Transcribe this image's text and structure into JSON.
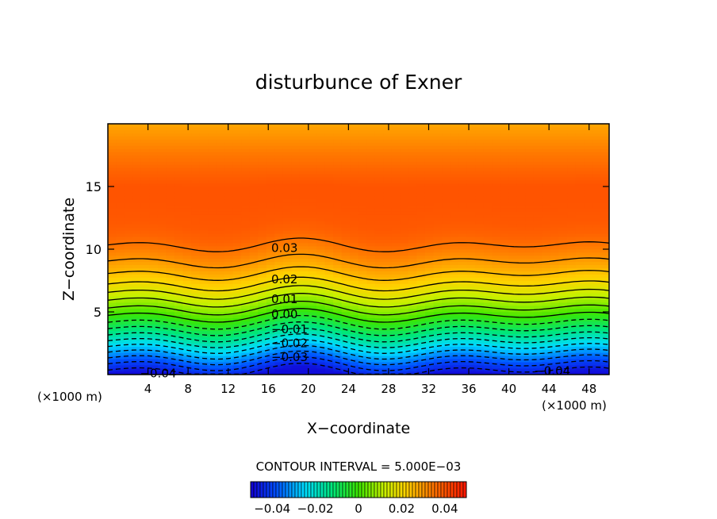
{
  "chart_data": {
    "type": "contour",
    "title": "disturbunce of Exner",
    "xlabel": "X−coordinate",
    "ylabel": "Z−coordinate",
    "x_unit": "(×1000 m)",
    "z_unit": "(×1000 m)",
    "xlim": [
      0,
      50
    ],
    "ylim": [
      0,
      20
    ],
    "x_ticks": [
      4,
      8,
      12,
      16,
      20,
      24,
      28,
      32,
      36,
      40,
      44,
      48
    ],
    "y_ticks": [
      5,
      10,
      15
    ],
    "contour_interval_text": "CONTOUR INTERVAL = 5.000E−03",
    "contour_labels": [
      {
        "text": "0.03",
        "x": 16.3,
        "z": 10.1
      },
      {
        "text": "0.02",
        "x": 16.3,
        "z": 7.6
      },
      {
        "text": "0.01",
        "x": 16.3,
        "z": 6.0
      },
      {
        "text": "0.00",
        "x": 16.3,
        "z": 4.8
      },
      {
        "text": "−0.01",
        "x": 16.3,
        "z": 3.6
      },
      {
        "text": "−0.02",
        "x": 16.3,
        "z": 2.5
      },
      {
        "text": "−0.03",
        "x": 16.3,
        "z": 1.4
      },
      {
        "text": "−0.04",
        "x": 3.2,
        "z": 0.1
      },
      {
        "text": "−0.04",
        "x": 42.5,
        "z": 0.3
      }
    ],
    "profile_z": [
      0,
      1,
      2,
      3,
      4,
      5,
      6,
      7,
      8,
      9,
      10,
      11,
      12,
      13,
      14,
      15,
      16,
      17,
      18,
      19,
      20
    ],
    "profile_value": [
      -0.048,
      -0.038,
      -0.027,
      -0.016,
      -0.006,
      0.003,
      0.011,
      0.019,
      0.025,
      0.03,
      0.034,
      0.0375,
      0.039,
      0.0395,
      0.0398,
      0.0398,
      0.038,
      0.0355,
      0.033,
      0.0305,
      0.028
    ],
    "colorbar": {
      "min": -0.05,
      "max": 0.05,
      "ticks": [
        -0.04,
        -0.02,
        0,
        0.02,
        0.04
      ],
      "tick_labels": [
        "−0.04",
        "−0.02",
        "0",
        "0.02",
        "0.04"
      ]
    }
  }
}
